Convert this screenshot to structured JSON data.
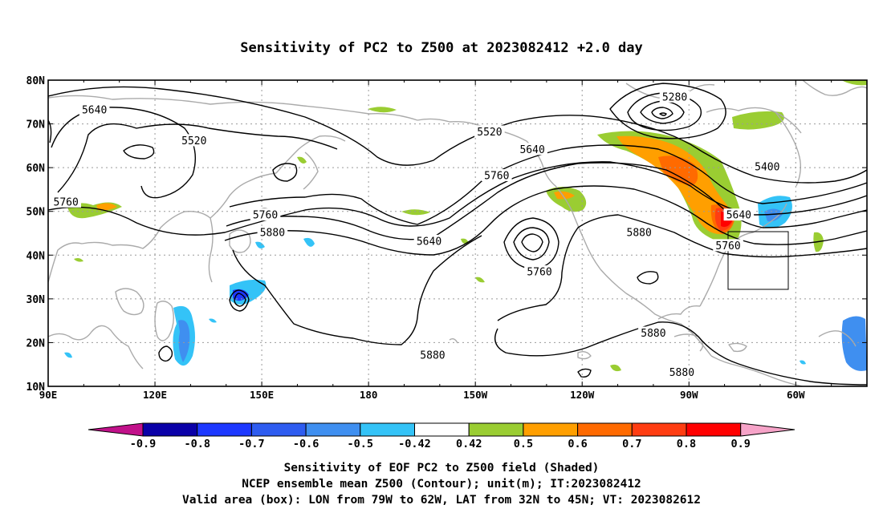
{
  "figure": {
    "title": "Sensitivity of PC2 to Z500 at 2023082412 +2.0 day",
    "lat_labels": [
      "80N",
      "70N",
      "60N",
      "50N",
      "40N",
      "30N",
      "20N",
      "10N"
    ],
    "lon_labels": [
      "90E",
      "120E",
      "150E",
      "180",
      "150W",
      "120W",
      "90W",
      "60W"
    ],
    "contour_labels": [
      {
        "text": "5640",
        "lon": 103,
        "lat": 73
      },
      {
        "text": "5520",
        "lon": 131,
        "lat": 66
      },
      {
        "text": "5760",
        "lon": 95,
        "lat": 52
      },
      {
        "text": "5760",
        "lon": 151,
        "lat": 49
      },
      {
        "text": "5880",
        "lon": 153,
        "lat": 45
      },
      {
        "text": "5640",
        "lon": 197,
        "lat": 43
      },
      {
        "text": "5520",
        "lon": 214,
        "lat": 68
      },
      {
        "text": "5640",
        "lon": 226,
        "lat": 64
      },
      {
        "text": "5760",
        "lon": 216,
        "lat": 58
      },
      {
        "text": "5760",
        "lon": 228,
        "lat": 36
      },
      {
        "text": "5880",
        "lon": 256,
        "lat": 45
      },
      {
        "text": "5280",
        "lon": 266,
        "lat": 76
      },
      {
        "text": "5400",
        "lon": 292,
        "lat": 60
      },
      {
        "text": "5640",
        "lon": 284,
        "lat": 49
      },
      {
        "text": "5760",
        "lon": 281,
        "lat": 42
      },
      {
        "text": "5880",
        "lon": 198,
        "lat": 17
      },
      {
        "text": "5880",
        "lon": 260,
        "lat": 22
      },
      {
        "text": "5880",
        "lon": 268,
        "lat": 13
      }
    ],
    "valid_box": {
      "lon_w": 281,
      "lon_e": 298,
      "lat_s": 32,
      "lat_n": 45
    },
    "colorbar": {
      "labels": [
        "-0.9",
        "-0.8",
        "-0.7",
        "-0.6",
        "-0.5",
        "-0.42",
        "0.42",
        "0.5",
        "0.6",
        "0.7",
        "0.8",
        "0.9"
      ],
      "colors": [
        "#0a00a8",
        "#1d38ff",
        "#2e5cf0",
        "#3f8ff0",
        "#34c3f7",
        "#ffffff",
        "#9acd32",
        "#ff9f00",
        "#ff6a00",
        "#ff3d12",
        "#ff0000"
      ],
      "low_end_color": "#c1118a",
      "high_end_color": "#f6a3c8"
    },
    "caption": [
      "Sensitivity of EOF PC2 to Z500 field (Shaded)",
      "NCEP ensemble mean Z500 (Contour); unit(m); IT:2023082412",
      "Valid area (box): LON from 79W to 62W, LAT from 32N to 45N; VT: 2023082612"
    ],
    "colors": {
      "contour": "#000000",
      "coastline": "#aaaaaa",
      "grid": "#9a9a9a"
    }
  }
}
